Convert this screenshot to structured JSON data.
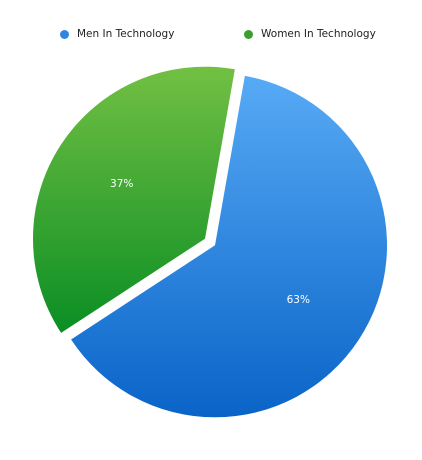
{
  "chart_data": {
    "type": "pie",
    "title": "",
    "legend_position": "top",
    "exploded": true,
    "categories": [
      "Men In Technology",
      "Women In Technology"
    ],
    "values": [
      63,
      37
    ],
    "labels": [
      "63%",
      "37%"
    ],
    "colors": [
      "#2f86e0",
      "#3a9f2d"
    ],
    "gradients": [
      {
        "from": "#57aaf5",
        "to": "#0a64c8"
      },
      {
        "from": "#72c043",
        "to": "#0a8e24"
      }
    ]
  }
}
